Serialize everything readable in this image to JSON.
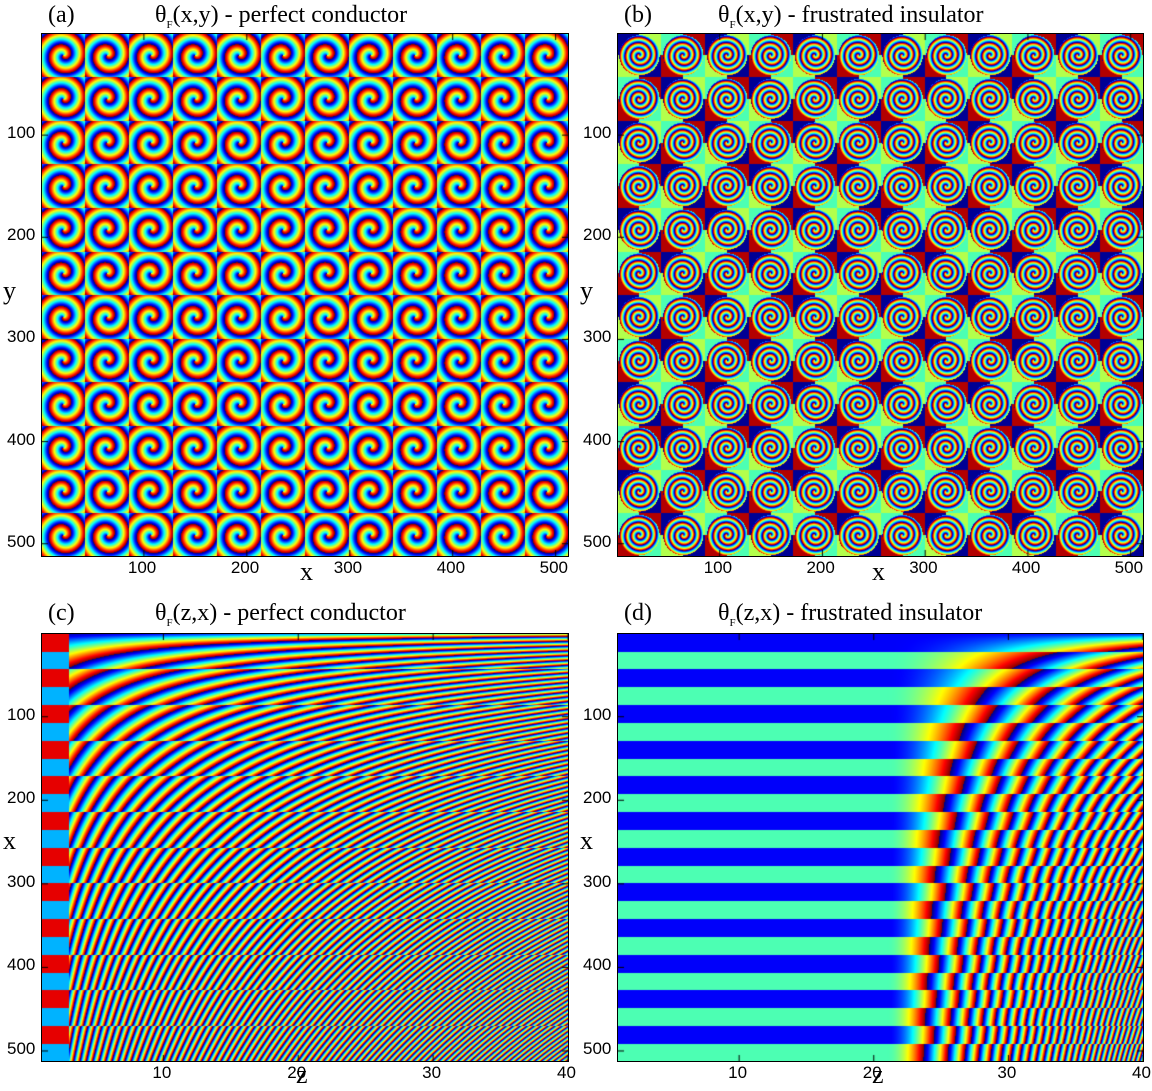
{
  "chart_data": [
    {
      "type": "heatmap",
      "panel_label": "(a)",
      "title_lead": "θ",
      "title_sub": "F",
      "title_tail": "(x,y) - perfect conductor",
      "xlabel": "x",
      "ylabel": "y",
      "x_ticks": [
        "100",
        "200",
        "300",
        "400",
        "500"
      ],
      "y_ticks": [
        "100",
        "200",
        "300",
        "400",
        "500"
      ],
      "xlim": [
        1,
        512
      ],
      "ylim": [
        1,
        512
      ],
      "pattern": "spiral-lattice-conductor",
      "colormap": "jet"
    },
    {
      "type": "heatmap",
      "panel_label": "(b)",
      "title_lead": "θ",
      "title_sub": "F",
      "title_tail": "(x,y) - frustrated insulator",
      "xlabel": "x",
      "ylabel": "y",
      "x_ticks": [
        "100",
        "200",
        "300",
        "400",
        "500"
      ],
      "y_ticks": [
        "100",
        "200",
        "300",
        "400",
        "500"
      ],
      "xlim": [
        1,
        512
      ],
      "ylim": [
        1,
        512
      ],
      "pattern": "spiral-lattice-insulator",
      "colormap": "jet"
    },
    {
      "type": "heatmap",
      "panel_label": "(c)",
      "title_lead": "θ",
      "title_sub": "F",
      "title_tail": "(z,x) - perfect conductor",
      "xlabel": "z",
      "ylabel": "x",
      "x_ticks": [
        "10",
        "20",
        "30",
        "40"
      ],
      "y_ticks": [
        "100",
        "200",
        "300",
        "400",
        "500"
      ],
      "xlim": [
        1,
        40
      ],
      "ylim": [
        1,
        512
      ],
      "pattern": "stripes-conductor",
      "colormap": "jet"
    },
    {
      "type": "heatmap",
      "panel_label": "(d)",
      "title_lead": "θ",
      "title_sub": "F",
      "title_tail": "(z,x) - frustrated insulator",
      "xlabel": "z",
      "ylabel": "x",
      "x_ticks": [
        "10",
        "20",
        "30",
        "40"
      ],
      "y_ticks": [
        "100",
        "200",
        "300",
        "400",
        "500"
      ],
      "xlim": [
        1,
        40
      ],
      "ylim": [
        1,
        512
      ],
      "pattern": "stripes-insulator",
      "colormap": "jet"
    }
  ]
}
